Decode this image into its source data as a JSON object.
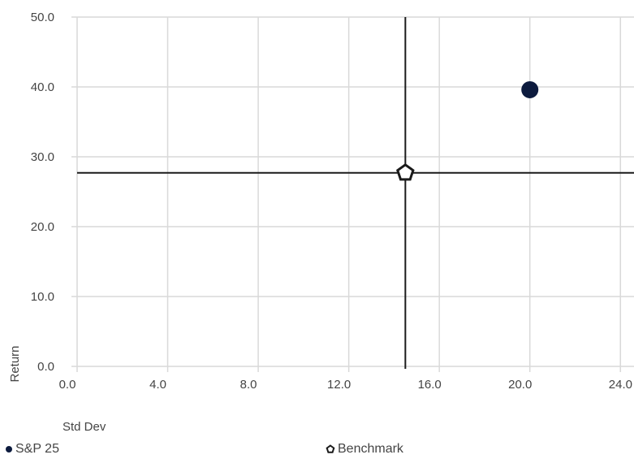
{
  "chart_data": {
    "type": "scatter",
    "xlabel": "Std Dev",
    "ylabel": "Return",
    "xlim": [
      0,
      24.6
    ],
    "ylim": [
      0,
      50
    ],
    "x_ticks": [
      0,
      4,
      8,
      12,
      16,
      20,
      24
    ],
    "x_tick_labels": [
      "0.0",
      "4.0",
      "8.0",
      "12.0",
      "16.0",
      "20.0",
      "24.0"
    ],
    "y_ticks": [
      0,
      10,
      20,
      30,
      40,
      50
    ],
    "y_tick_labels": [
      "0.0",
      "10.0",
      "20.0",
      "30.0",
      "40.0",
      "50.0"
    ],
    "grid": true,
    "legend_position": "bottom",
    "series": [
      {
        "name": "S&P 25",
        "x": [
          20.0
        ],
        "y": [
          39.6
        ],
        "marker": "circle",
        "color": "#0d1b3e"
      },
      {
        "name": "Benchmark",
        "x": [
          14.5
        ],
        "y": [
          27.7
        ],
        "marker": "pentagon",
        "color": "#1a1a1a"
      }
    ],
    "crosshair": {
      "x": 14.5,
      "y": 27.7,
      "color": "#1a1a1a"
    },
    "colors": {
      "grid": "#d9d9d9",
      "axis": "#444444"
    }
  }
}
